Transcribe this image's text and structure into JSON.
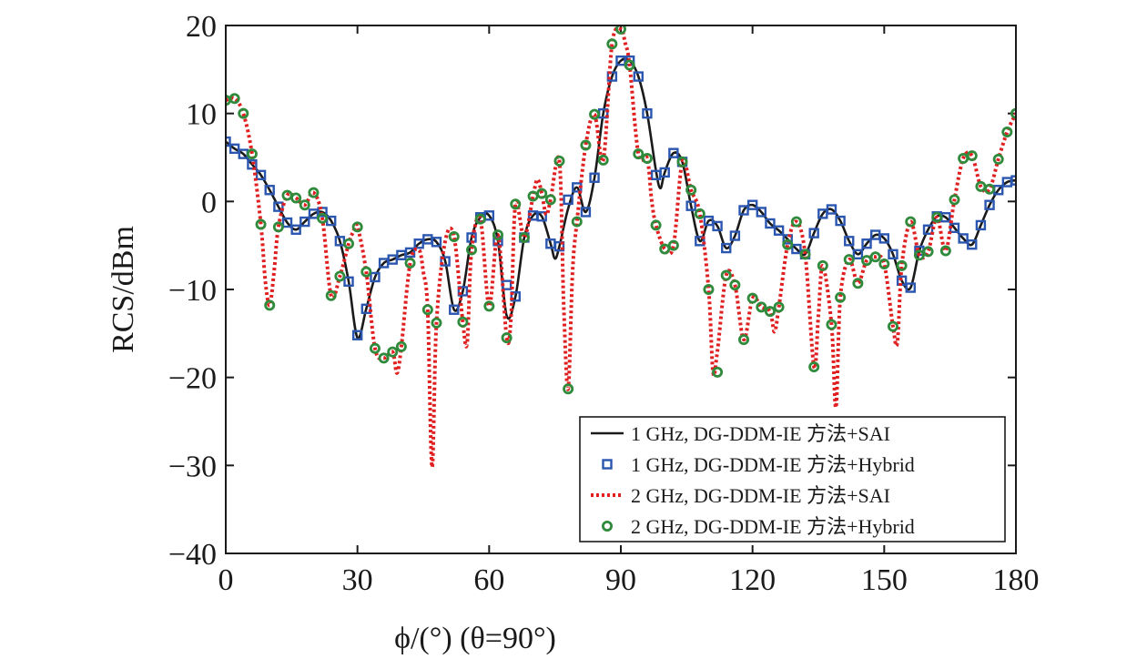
{
  "chart_data": {
    "type": "line",
    "xlabel": "ϕ/(°) (θ=90°)",
    "ylabel": "RCS/dBm",
    "xlim": [
      0,
      180
    ],
    "ylim": [
      -40,
      20
    ],
    "xticks": [
      "0",
      "30",
      "60",
      "90",
      "120",
      "150",
      "180"
    ],
    "yticks": [
      "20",
      "10",
      "0",
      "−10",
      "−20",
      "−30",
      "−40"
    ],
    "grid": false,
    "legend_position": "bottom-right",
    "series": [
      {
        "name": "1 GHz, DG-DDM-IE 方法+SAI",
        "style": "solid-line",
        "color": "#1a1a1a",
        "x": [
          0,
          2,
          4,
          6,
          8,
          10,
          12,
          14,
          16,
          18,
          20,
          22,
          24,
          26,
          28,
          30,
          32,
          34,
          36,
          38,
          40,
          42,
          44,
          46,
          48,
          50,
          52,
          54,
          56,
          58,
          60,
          62,
          64,
          66,
          68,
          70,
          72,
          74,
          75,
          76,
          78,
          80,
          82,
          84,
          86,
          88,
          90,
          92,
          94,
          96,
          98,
          99,
          100,
          102,
          104,
          106,
          108,
          110,
          112,
          114,
          116,
          118,
          120,
          122,
          124,
          126,
          128,
          130,
          132,
          134,
          136,
          138,
          140,
          142,
          144,
          146,
          148,
          150,
          152,
          154,
          156,
          158,
          160,
          162,
          164,
          166,
          168,
          170,
          172,
          174,
          176,
          178,
          180
        ],
        "y": [
          6.8,
          6,
          5.4,
          4.2,
          3,
          1.3,
          -0.6,
          -2.4,
          -3.2,
          -2.3,
          -1.4,
          -1.2,
          -2.2,
          -4.5,
          -9.1,
          -15.5,
          -12.2,
          -8.6,
          -7,
          -6.6,
          -6.1,
          -5.8,
          -4.8,
          -4.3,
          -4.6,
          -6.8,
          -12.3,
          -10.2,
          -4.1,
          -1.8,
          -1.6,
          -4.5,
          -13,
          -10.8,
          -4.1,
          -1.6,
          -1.7,
          -4.8,
          -6.5,
          -5.1,
          -0.8,
          1.6,
          -1.2,
          2.7,
          10,
          14.2,
          16,
          16,
          14.2,
          10,
          3.5,
          1.5,
          3.3,
          5.5,
          4.5,
          -0.5,
          -4.5,
          -2.2,
          -2.8,
          -5.3,
          -3.9,
          -1,
          -0.4,
          -1.2,
          -2.5,
          -3.3,
          -4.3,
          -5.4,
          -6,
          -3.6,
          -1.4,
          -0.9,
          -2.2,
          -4.5,
          -6,
          -4.8,
          -3.8,
          -4.2,
          -6,
          -9,
          -9.8,
          -5.6,
          -3.2,
          -1.7,
          -1.8,
          -3,
          -4.2,
          -4.9,
          -2.7,
          -0.4,
          1.3,
          2.2,
          2.4
        ]
      },
      {
        "name": "1 GHz, DG-DDM-IE 方法+Hybrid",
        "style": "square-marker",
        "color": "#2b56b0",
        "x": [
          0,
          2,
          4,
          6,
          8,
          10,
          12,
          14,
          16,
          18,
          20,
          22,
          24,
          26,
          28,
          30,
          32,
          34,
          36,
          38,
          40,
          42,
          44,
          46,
          48,
          50,
          52,
          54,
          56,
          58,
          60,
          62,
          64,
          66,
          68,
          70,
          72,
          74,
          76,
          78,
          80,
          82,
          84,
          86,
          88,
          90,
          92,
          94,
          96,
          98,
          100,
          102,
          104,
          106,
          108,
          110,
          112,
          114,
          116,
          118,
          120,
          122,
          124,
          126,
          128,
          130,
          132,
          134,
          136,
          138,
          140,
          142,
          144,
          146,
          148,
          150,
          152,
          154,
          156,
          158,
          160,
          162,
          164,
          166,
          168,
          170,
          172,
          174,
          176,
          178,
          180
        ],
        "y": [
          6.8,
          6,
          5.4,
          4.2,
          3,
          1.3,
          -0.6,
          -2.4,
          -3.2,
          -2.3,
          -1.4,
          -1.2,
          -2.2,
          -4.5,
          -9.1,
          -15.2,
          -12.2,
          -8.6,
          -7,
          -6.6,
          -6.1,
          -5.8,
          -4.8,
          -4.3,
          -4.6,
          -6.8,
          -12.3,
          -10.2,
          -4.1,
          -1.8,
          -1.6,
          -4.5,
          -9.5,
          -10.8,
          -4.1,
          -1.6,
          -1.7,
          -4.8,
          -5.1,
          0.2,
          1.6,
          -1.2,
          2.7,
          10,
          14.2,
          16,
          16,
          14.2,
          10,
          3,
          3.3,
          5.5,
          4.5,
          -0.5,
          -4.5,
          -2.2,
          -2.8,
          -5.3,
          -3.9,
          -1,
          -0.4,
          -1.2,
          -2.5,
          -3.3,
          -4.3,
          -5.4,
          -6,
          -3.6,
          -1.4,
          -0.9,
          -2.2,
          -4.5,
          -6,
          -4.8,
          -3.8,
          -4.2,
          -6,
          -9,
          -9.8,
          -5.6,
          -3.2,
          -1.7,
          -1.8,
          -3,
          -4.2,
          -4.9,
          -2.7,
          -0.4,
          1.3,
          2.2,
          2.4
        ]
      },
      {
        "name": "2 GHz, DG-DDM-IE 方法+SAI",
        "style": "dotted-line",
        "color": "#e02020",
        "x": [
          0,
          2,
          4,
          6,
          8,
          9,
          10,
          11,
          12,
          14,
          16,
          18,
          20,
          22,
          24,
          26,
          28,
          29,
          30,
          32,
          34,
          36,
          38,
          39,
          40,
          42,
          44,
          45,
          46,
          47,
          48,
          50,
          52,
          54,
          55,
          56,
          58,
          60,
          62,
          64,
          65,
          66,
          68,
          70,
          71,
          72,
          73,
          74,
          76,
          77,
          78,
          79,
          80,
          82,
          84,
          86,
          88,
          90,
          91,
          92,
          94,
          96,
          97,
          98,
          100,
          102,
          104,
          106,
          108,
          110,
          111,
          112,
          114,
          116,
          118,
          120,
          122,
          124,
          125,
          126,
          128,
          130,
          132,
          134,
          135,
          136,
          138,
          139,
          140,
          142,
          144,
          146,
          148,
          150,
          152,
          153,
          154,
          156,
          158,
          160,
          162,
          164,
          166,
          168,
          170,
          172,
          174,
          176,
          178,
          180
        ],
        "y": [
          11.5,
          11.7,
          10,
          5.4,
          -2.6,
          -9,
          -11.8,
          -8,
          -2.9,
          0.7,
          0.4,
          -0.4,
          1,
          -1.9,
          -10.7,
          -8.5,
          -4.8,
          -3.5,
          -2.9,
          -8,
          -16.7,
          -17.8,
          -17.1,
          -19.5,
          -16.5,
          -7,
          -5.5,
          -8,
          -12.3,
          -30.2,
          -13.8,
          -4.5,
          -4,
          -13.7,
          -16,
          -5.5,
          -2,
          -11.9,
          -3.8,
          -15.5,
          -13,
          -0.3,
          -4.1,
          0.6,
          2.5,
          0.9,
          -1.5,
          0.2,
          4.6,
          -12,
          -21.3,
          -8,
          -2.3,
          6.4,
          9.9,
          4.7,
          17.9,
          19.6,
          18,
          15.5,
          5.4,
          4.9,
          0.2,
          -2.7,
          -5.4,
          -5,
          4.5,
          1.3,
          -1.4,
          -10,
          -19.4,
          -17,
          -8.4,
          -9.5,
          -15.7,
          -11,
          -12,
          -12.5,
          -14.8,
          -12,
          -4.9,
          -2.3,
          -6,
          -18.8,
          -13,
          -7.3,
          -14,
          -23.4,
          -10.9,
          -6.6,
          -9.3,
          -6.7,
          -6.3,
          -7.1,
          -14.2,
          -16,
          -7.3,
          -2.3,
          -6.1,
          -5.7,
          -1.8,
          -5.6,
          0.2,
          4.9,
          5.2,
          1.7,
          1.4,
          4.8,
          7.9,
          10
        ]
      },
      {
        "name": "2 GHz, DG-DDM-IE 方法+Hybrid",
        "style": "circle-marker",
        "color": "#2f8a3c",
        "x": [
          0,
          2,
          4,
          6,
          8,
          10,
          12,
          14,
          16,
          18,
          20,
          22,
          24,
          26,
          28,
          30,
          32,
          34,
          36,
          38,
          40,
          42,
          46,
          48,
          52,
          54,
          56,
          58,
          60,
          62,
          64,
          66,
          68,
          70,
          72,
          74,
          76,
          78,
          80,
          82,
          84,
          86,
          88,
          90,
          92,
          94,
          96,
          98,
          100,
          102,
          104,
          106,
          108,
          110,
          112,
          114,
          116,
          118,
          120,
          122,
          124,
          126,
          128,
          130,
          132,
          134,
          136,
          138,
          140,
          142,
          144,
          146,
          148,
          150,
          152,
          154,
          156,
          158,
          160,
          162,
          164,
          166,
          168,
          170,
          172,
          174,
          176,
          178,
          180
        ],
        "y": [
          11.5,
          11.7,
          10,
          5.4,
          -2.6,
          -11.8,
          -2.9,
          0.7,
          0.4,
          -0.4,
          1,
          -1.9,
          -10.7,
          -8.5,
          -4.8,
          -2.9,
          -8,
          -16.7,
          -17.8,
          -17.1,
          -16.5,
          -7,
          -12.3,
          -13.8,
          -4,
          -13.7,
          -5.5,
          -2,
          -11.9,
          -3.8,
          -15.5,
          -0.3,
          -4.1,
          0.6,
          0.9,
          0.2,
          4.6,
          -21.3,
          -2.3,
          6.4,
          9.9,
          4.7,
          17.9,
          19.6,
          15.5,
          5.4,
          4.9,
          -2.7,
          -5.4,
          -5,
          4.5,
          1.3,
          -1.4,
          -10,
          -19.4,
          -8.4,
          -9.5,
          -15.7,
          -11,
          -12,
          -12.5,
          -12,
          -4.9,
          -2.3,
          -6,
          -18.8,
          -7.3,
          -14,
          -10.9,
          -6.6,
          -9.3,
          -6.7,
          -6.3,
          -7.1,
          -14.2,
          -7.3,
          -2.3,
          -6.1,
          -5.7,
          -1.8,
          -5.6,
          0.2,
          4.9,
          5.2,
          1.7,
          1.4,
          4.8,
          7.9,
          10
        ]
      }
    ]
  }
}
